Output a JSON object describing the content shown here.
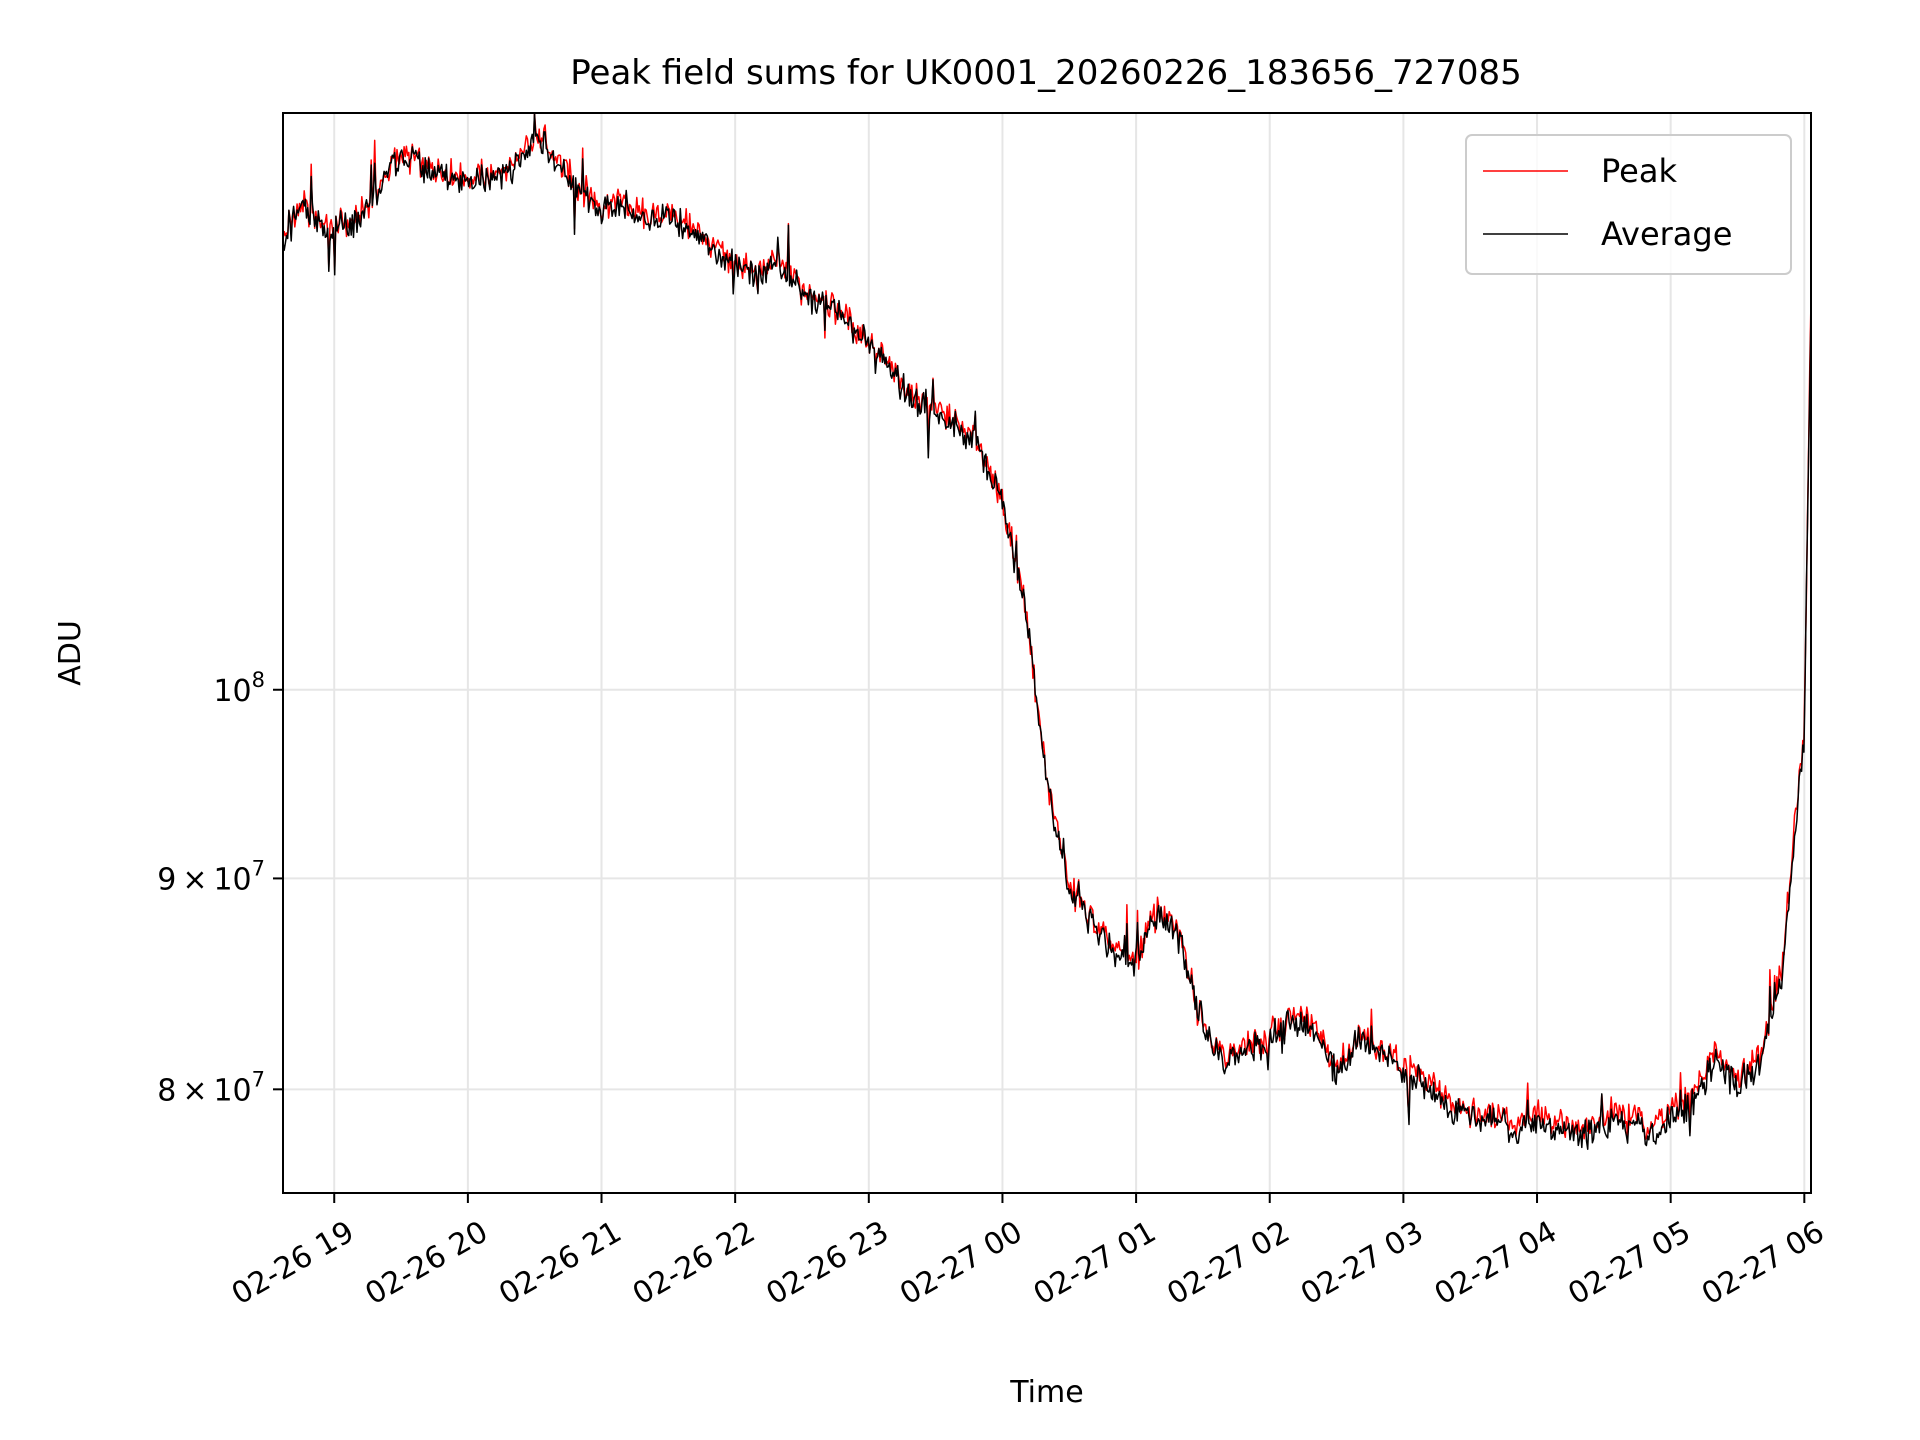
{
  "chart_data": {
    "type": "line",
    "title": "Peak field sums for UK0001_20260226_183656_727085",
    "xlabel": "Time",
    "ylabel": "ADU",
    "yscale": "log",
    "grid": true,
    "legend_position": "top-right",
    "xlim": [
      "02-26 18:37",
      "02-27 06:03"
    ],
    "ylim": [
      75500000,
      138000000
    ],
    "x_tick_labels": [
      "02-26 19",
      "02-26 20",
      "02-26 21",
      "02-26 22",
      "02-26 23",
      "02-27 00",
      "02-27 01",
      "02-27 02",
      "02-27 03",
      "02-27 04",
      "02-27 05",
      "02-27 06"
    ],
    "y_ticks": [
      {
        "value": 80000000,
        "base": "8",
        "times": "×",
        "mantissa": "10",
        "exponent": "7"
      },
      {
        "value": 90000000,
        "base": "9",
        "times": "×",
        "mantissa": "10",
        "exponent": "7"
      },
      {
        "value": 100000000,
        "base": "",
        "times": "",
        "mantissa": "10",
        "exponent": "8"
      }
    ],
    "x": [
      "02-26 18:37",
      "02-26 18:45",
      "02-26 19:00",
      "02-26 19:10",
      "02-26 19:20",
      "02-26 19:30",
      "02-26 19:40",
      "02-26 19:50",
      "02-26 20:00",
      "02-26 20:10",
      "02-26 20:20",
      "02-26 20:30",
      "02-26 20:40",
      "02-26 20:50",
      "02-26 21:00",
      "02-26 21:10",
      "02-26 21:20",
      "02-26 21:30",
      "02-26 21:40",
      "02-26 21:50",
      "02-26 22:00",
      "02-26 22:10",
      "02-26 22:20",
      "02-26 22:30",
      "02-26 22:40",
      "02-26 22:50",
      "02-26 23:00",
      "02-26 23:10",
      "02-26 23:20",
      "02-26 23:30",
      "02-26 23:40",
      "02-26 23:50",
      "02-27 00:00",
      "02-27 00:10",
      "02-27 00:20",
      "02-27 00:30",
      "02-27 00:40",
      "02-27 00:50",
      "02-27 01:00",
      "02-27 01:10",
      "02-27 01:20",
      "02-27 01:30",
      "02-27 01:40",
      "02-27 01:50",
      "02-27 02:00",
      "02-27 02:10",
      "02-27 02:20",
      "02-27 02:30",
      "02-27 02:40",
      "02-27 02:50",
      "02-27 03:00",
      "02-27 03:10",
      "02-27 03:20",
      "02-27 03:30",
      "02-27 03:40",
      "02-27 03:50",
      "02-27 04:00",
      "02-27 04:10",
      "02-27 04:20",
      "02-27 04:30",
      "02-27 04:40",
      "02-27 04:50",
      "02-27 05:00",
      "02-27 05:10",
      "02-27 05:20",
      "02-27 05:30",
      "02-27 05:40",
      "02-27 05:50",
      "02-27 06:00",
      "02-27 06:03"
    ],
    "series": [
      {
        "name": "Peak",
        "color": "#ff0000",
        "values": [
          129000000,
          131000000,
          129500000,
          130000000,
          132500000,
          135000000,
          134000000,
          133500000,
          133000000,
          133500000,
          134000000,
          136500000,
          134500000,
          132500000,
          131000000,
          131500000,
          130000000,
          130500000,
          129500000,
          128000000,
          127000000,
          126000000,
          127000000,
          125000000,
          124500000,
          123000000,
          121500000,
          119500000,
          118000000,
          117000000,
          116000000,
          114500000,
          111000000,
          105000000,
          95000000,
          89500000,
          88000000,
          86500000,
          86000000,
          88500000,
          87000000,
          83000000,
          81500000,
          82000000,
          82500000,
          83500000,
          83000000,
          81000000,
          82500000,
          82000000,
          81000000,
          80500000,
          79500000,
          79000000,
          79000000,
          78500000,
          78800000,
          78600000,
          78200000,
          78800000,
          79000000,
          78400000,
          79000000,
          79800000,
          81800000,
          80500000,
          81500000,
          85500000,
          98000000,
          124000000
        ]
      },
      {
        "name": "Average",
        "color": "#000000",
        "values": [
          128800000,
          130800000,
          129300000,
          129800000,
          132300000,
          134800000,
          133800000,
          133300000,
          132800000,
          133300000,
          133800000,
          136300000,
          134300000,
          132300000,
          130800000,
          131300000,
          129800000,
          130300000,
          129300000,
          127800000,
          126800000,
          125800000,
          126800000,
          124800000,
          124300000,
          122800000,
          121300000,
          119300000,
          117800000,
          116800000,
          115800000,
          114300000,
          110800000,
          104800000,
          94800000,
          89300000,
          87800000,
          86300000,
          85800000,
          88300000,
          86800000,
          82800000,
          81300000,
          81700000,
          82200000,
          83200000,
          82700000,
          80700000,
          82200000,
          81700000,
          80700000,
          80200000,
          79200000,
          78700000,
          78700000,
          78200000,
          78500000,
          78300000,
          77900000,
          78400000,
          78600000,
          78000000,
          78600000,
          79400000,
          81400000,
          80100000,
          81100000,
          85100000,
          97600000,
          123700000
        ]
      }
    ]
  }
}
